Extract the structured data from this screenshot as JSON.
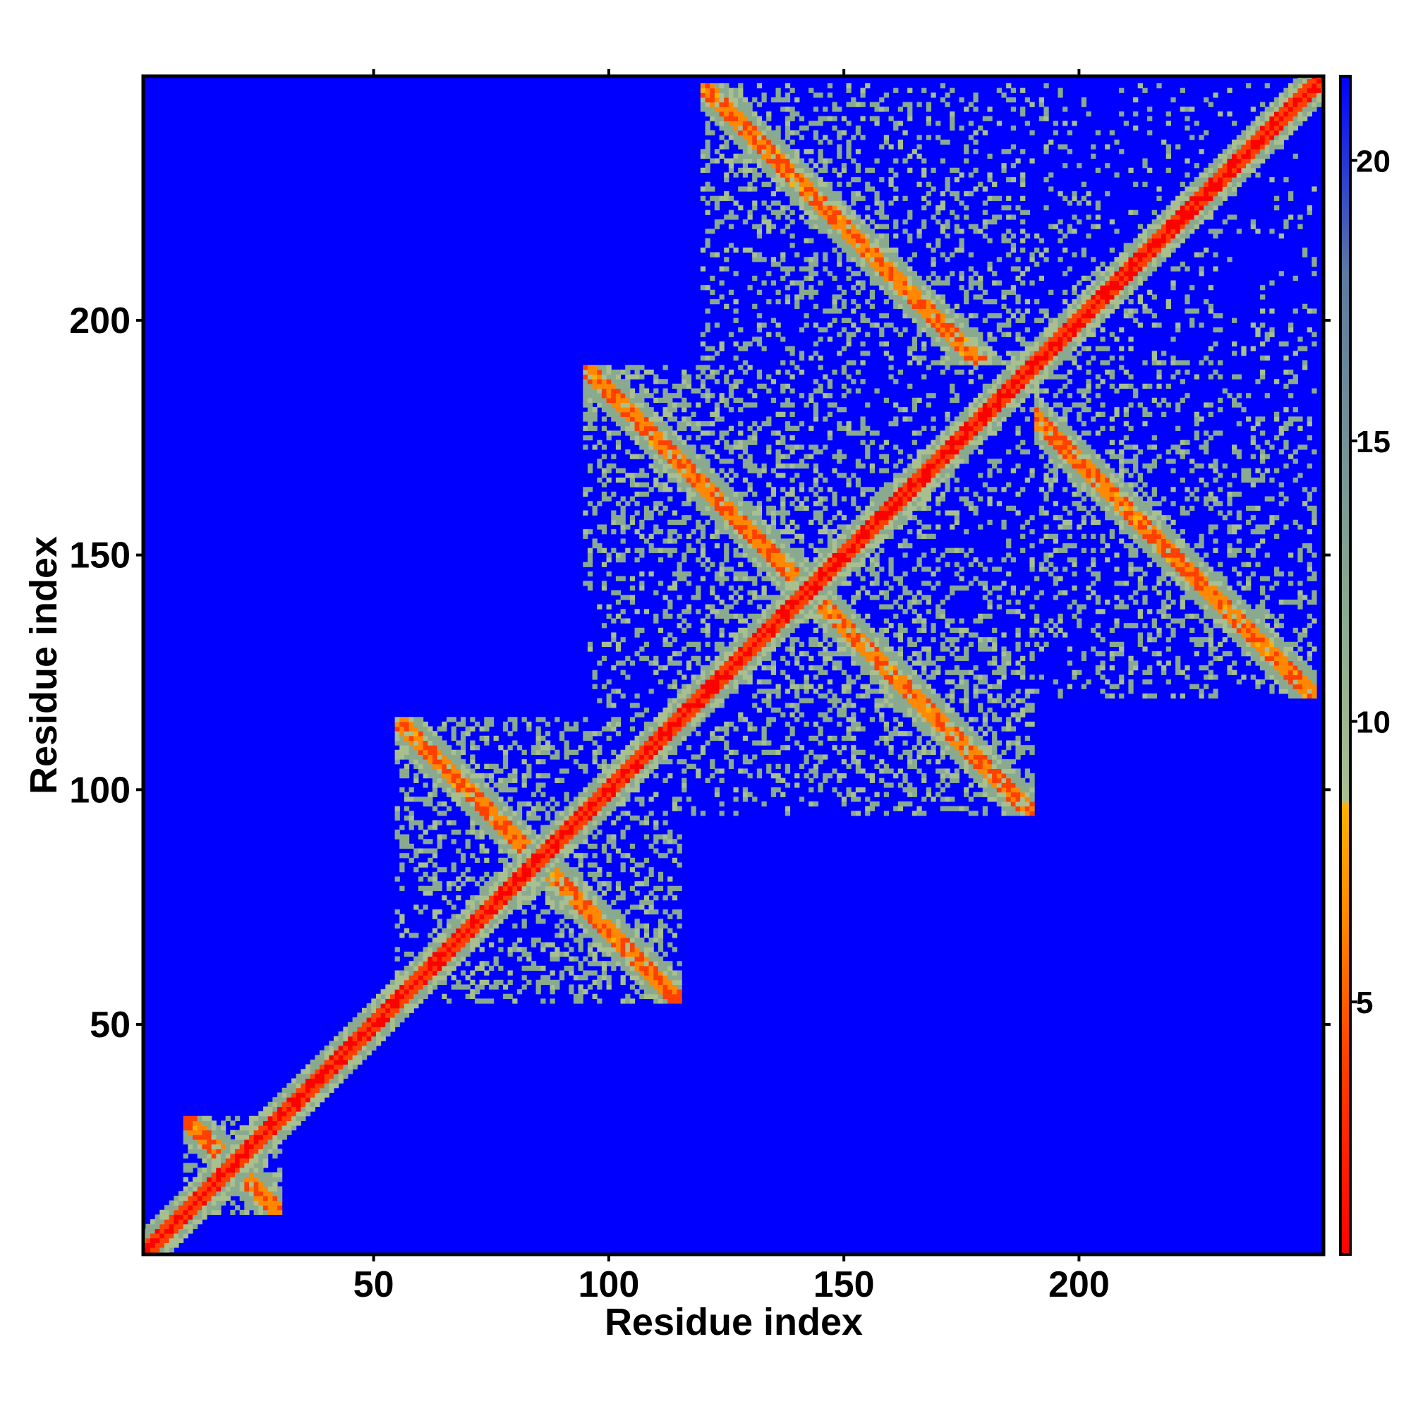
{
  "chart_data": {
    "type": "heatmap",
    "title": "",
    "xlabel": "Residue index",
    "ylabel": "Residue index",
    "xlim": [
      1,
      252
    ],
    "ylim": [
      1,
      252
    ],
    "x_ticks": [
      50,
      100,
      150,
      200
    ],
    "y_ticks": [
      50,
      100,
      150,
      200
    ],
    "x_tick_labels": [
      "50",
      "100",
      "150",
      "200"
    ],
    "y_tick_labels": [
      "50",
      "100",
      "150",
      "200"
    ],
    "colorbar": {
      "range": [
        0.5,
        21.5
      ],
      "ticks": [
        5,
        10,
        15,
        20
      ],
      "tick_labels": [
        "5",
        "10",
        "15",
        "20"
      ],
      "stops": [
        {
          "value": 0.5,
          "color": "#ff0000"
        },
        {
          "value": 4,
          "color": "#ff4000"
        },
        {
          "value": 6.5,
          "color": "#ff8800"
        },
        {
          "value": 8.5,
          "color": "#ffb000"
        },
        {
          "value": 8.6,
          "color": "#a8c090"
        },
        {
          "value": 12,
          "color": "#8aaa90"
        },
        {
          "value": 18,
          "color": "#5a7aa0"
        },
        {
          "value": 21.5,
          "color": "#0000ff"
        }
      ]
    },
    "background_value": 21,
    "background_color": "#0000ff",
    "diagonal_band": {
      "core_color": "#ff0000",
      "inner_color": "#ff8800",
      "outer_color": "#8aaa90"
    },
    "off_diagonal_contacts": [
      {
        "x_range": [
          10,
          30
        ],
        "y_range": [
          10,
          30
        ],
        "kind": "helix-cross"
      },
      {
        "x_range": [
          55,
          115
        ],
        "y_range": [
          55,
          115
        ],
        "kind": "cross"
      },
      {
        "x_range": [
          95,
          190
        ],
        "y_range": [
          95,
          190
        ],
        "kind": "cross"
      },
      {
        "x_range": [
          120,
          250
        ],
        "y_range": [
          120,
          250
        ],
        "kind": "network"
      },
      {
        "x_range": [
          170,
          250
        ],
        "y_range": [
          170,
          250
        ],
        "kind": "network"
      }
    ],
    "grid": false,
    "legend": "colorbar-right"
  }
}
